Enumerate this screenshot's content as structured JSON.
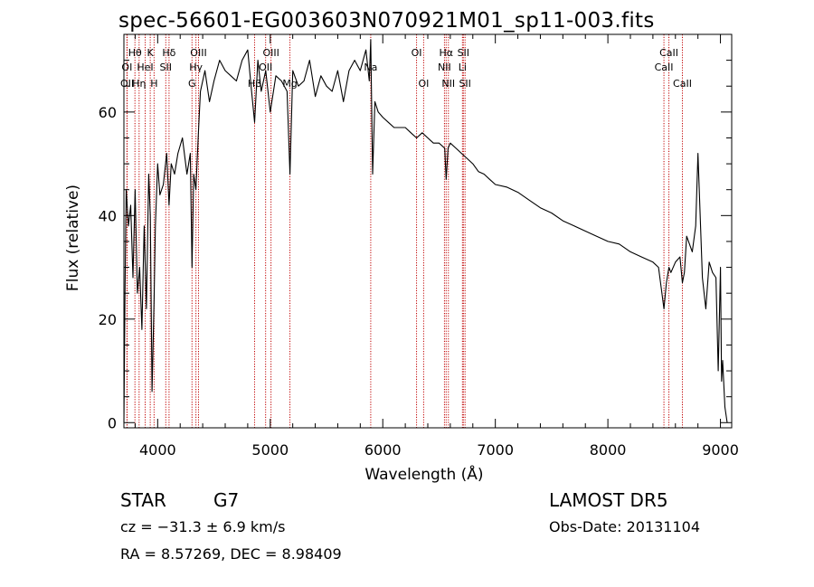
{
  "header": {
    "title": "spec-56601-EG003603N070921M01_sp11-003.fits"
  },
  "info": {
    "class_label": "STAR",
    "subclass_label": "G7",
    "survey": "LAMOST DR5",
    "cz_text": "cz = −31.3 ± 6.9 km/s",
    "obs_date": "Obs-Date: 20131104",
    "coords": "RA =   8.57269, DEC =   8.98409"
  },
  "chart_data": {
    "type": "line",
    "title": "spec-56601-EG003603N070921M01_sp11-003.fits",
    "xlabel": "Wavelength (Å)",
    "ylabel": "Flux (relative)",
    "xlim": [
      3700,
      9100
    ],
    "ylim": [
      -1,
      75
    ],
    "xticks": [
      4000,
      5000,
      6000,
      7000,
      8000,
      9000
    ],
    "yticks": [
      0,
      20,
      40,
      60
    ],
    "grid": false,
    "line_color": "#000000",
    "marker_color": "#c00000",
    "series": [
      {
        "x": [
          3700,
          3710,
          3720,
          3740,
          3760,
          3780,
          3800,
          3820,
          3840,
          3860,
          3880,
          3900,
          3920,
          3935,
          3950,
          3968,
          3980,
          4000,
          4020,
          4050,
          4080,
          4101,
          4120,
          4150,
          4180,
          4220,
          4260,
          4290,
          4305,
          4320,
          4340,
          4360,
          4380,
          4420,
          4460,
          4500,
          4550,
          4600,
          4650,
          4700,
          4750,
          4800,
          4830,
          4861,
          4890,
          4920,
          4960,
          5000,
          5050,
          5100,
          5150,
          5175,
          5200,
          5250,
          5300,
          5350,
          5400,
          5450,
          5500,
          5550,
          5600,
          5650,
          5700,
          5750,
          5800,
          5850,
          5880,
          5893,
          5910,
          5930,
          5960,
          6000,
          6050,
          6100,
          6150,
          6200,
          6250,
          6300,
          6350,
          6400,
          6450,
          6500,
          6550,
          6563,
          6580,
          6600,
          6650,
          6700,
          6750,
          6800,
          6850,
          6900,
          6950,
          7000,
          7100,
          7200,
          7300,
          7400,
          7500,
          7600,
          7700,
          7800,
          7900,
          8000,
          8100,
          8200,
          8300,
          8400,
          8450,
          8498,
          8520,
          8542,
          8560,
          8600,
          8640,
          8662,
          8680,
          8700,
          8750,
          8780,
          8800,
          8840,
          8870,
          8900,
          8930,
          8960,
          8980,
          9000,
          9010,
          9020,
          9040,
          9060
        ],
        "y": [
          0,
          25,
          45,
          38,
          42,
          28,
          45,
          25,
          30,
          18,
          38,
          22,
          48,
          40,
          6,
          24,
          38,
          50,
          44,
          46,
          52,
          42,
          50,
          48,
          52,
          55,
          48,
          52,
          30,
          48,
          45,
          55,
          64,
          68,
          62,
          66,
          70,
          68,
          67,
          66,
          70,
          72,
          65,
          58,
          70,
          64,
          68,
          60,
          67,
          66,
          64,
          48,
          68,
          65,
          66,
          70,
          63,
          67,
          65,
          64,
          68,
          62,
          68,
          70,
          68,
          72,
          66,
          74,
          48,
          62,
          60,
          59,
          58,
          57,
          57,
          57,
          56,
          55,
          56,
          55,
          54,
          54,
          53,
          47,
          53,
          54,
          53,
          52,
          51,
          50,
          48.5,
          48,
          47,
          46,
          45.5,
          44.5,
          43,
          41.5,
          40.5,
          39,
          38,
          37,
          36,
          35,
          34.5,
          33,
          32,
          31,
          30,
          22,
          27,
          30,
          29,
          31,
          32,
          27,
          29,
          36,
          33,
          38,
          52,
          28,
          22,
          31,
          29,
          28,
          10,
          30,
          8,
          12,
          3,
          0
        ]
      }
    ],
    "line_markers": [
      {
        "name": "Hθ",
        "wavelength": 3798,
        "row": 1
      },
      {
        "name": "OI",
        "wavelength": 3727,
        "row": 2
      },
      {
        "name": "OII",
        "wavelength": 3729,
        "row": 3
      },
      {
        "name": "Hη",
        "wavelength": 3835,
        "row": 3
      },
      {
        "name": "K",
        "wavelength": 3934,
        "row": 1
      },
      {
        "name": "HeI",
        "wavelength": 3889,
        "row": 2
      },
      {
        "name": "H",
        "wavelength": 3968,
        "row": 3
      },
      {
        "name": "Hδ",
        "wavelength": 4101,
        "row": 1
      },
      {
        "name": "SII",
        "wavelength": 4072,
        "row": 2
      },
      {
        "name": "OIII",
        "wavelength": 4363,
        "row": 1
      },
      {
        "name": "Hγ",
        "wavelength": 4340,
        "row": 2
      },
      {
        "name": "G",
        "wavelength": 4305,
        "row": 3
      },
      {
        "name": "OIII",
        "wavelength": 5007,
        "row": 1
      },
      {
        "name": "OII",
        "wavelength": 4959,
        "row": 2
      },
      {
        "name": "Hβ",
        "wavelength": 4861,
        "row": 3
      },
      {
        "name": "Mg",
        "wavelength": 5175,
        "row": 3
      },
      {
        "name": "Na",
        "wavelength": 5893,
        "row": 2
      },
      {
        "name": "OI",
        "wavelength": 6300,
        "row": 1
      },
      {
        "name": "OI",
        "wavelength": 6363,
        "row": 3
      },
      {
        "name": "Hα",
        "wavelength": 6563,
        "row": 1
      },
      {
        "name": "NII",
        "wavelength": 6548,
        "row": 2
      },
      {
        "name": "NII",
        "wavelength": 6583,
        "row": 3
      },
      {
        "name": "SII",
        "wavelength": 6716,
        "row": 1
      },
      {
        "name": "Li",
        "wavelength": 6708,
        "row": 2
      },
      {
        "name": "SII",
        "wavelength": 6731,
        "row": 3
      },
      {
        "name": "CaII",
        "wavelength": 8542,
        "row": 1
      },
      {
        "name": "CaII",
        "wavelength": 8498,
        "row": 2
      },
      {
        "name": "CaII",
        "wavelength": 8662,
        "row": 3
      }
    ]
  }
}
